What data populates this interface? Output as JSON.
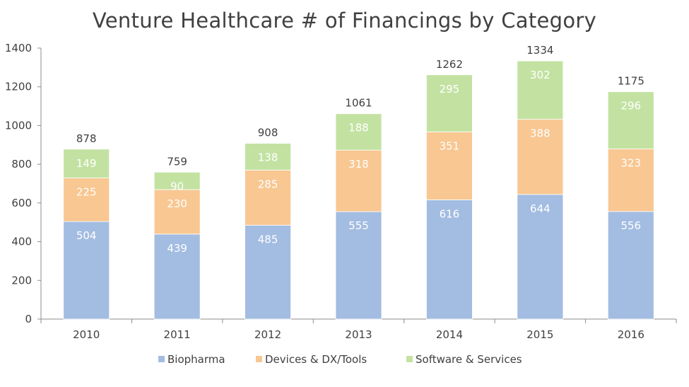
{
  "chart_data": {
    "type": "bar",
    "stacked": true,
    "title": "Venture Healthcare # of Financings by Category",
    "xlabel": "",
    "ylabel": "",
    "categories": [
      "2010",
      "2011",
      "2012",
      "2013",
      "2014",
      "2015",
      "2016"
    ],
    "series": [
      {
        "name": "Biopharma",
        "color": "#a3bce1",
        "values": [
          504,
          439,
          485,
          555,
          616,
          644,
          556
        ]
      },
      {
        "name": "Devices & DX/Tools",
        "color": "#f8c792",
        "values": [
          225,
          230,
          285,
          318,
          351,
          388,
          323
        ]
      },
      {
        "name": "Software & Services",
        "color": "#c3e2a2",
        "values": [
          149,
          90,
          138,
          188,
          295,
          302,
          296
        ]
      }
    ],
    "totals": [
      878,
      759,
      908,
      1061,
      1262,
      1334,
      1175
    ],
    "ylim": [
      0,
      1400
    ],
    "yticks": [
      0,
      200,
      400,
      600,
      800,
      1000,
      1200,
      1400
    ],
    "grid": false,
    "legend_position": "bottom"
  }
}
